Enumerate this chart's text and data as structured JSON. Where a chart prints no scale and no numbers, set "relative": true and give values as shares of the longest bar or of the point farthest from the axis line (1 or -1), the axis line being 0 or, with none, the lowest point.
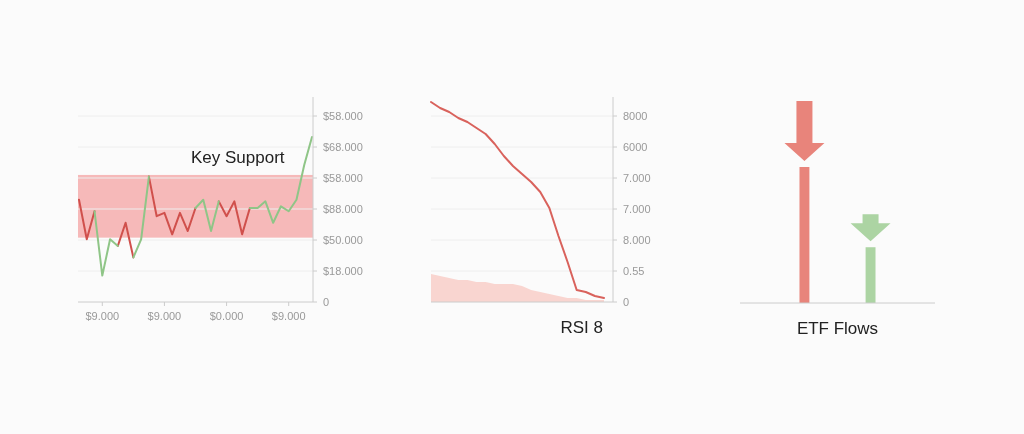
{
  "chart_data": [
    {
      "type": "line",
      "relative": true,
      "categories": [
        null,
        null,
        null,
        "$9.000",
        null,
        null,
        null,
        null,
        null,
        null,
        null,
        "$9.000",
        null,
        null,
        null,
        null,
        null,
        null,
        null,
        "$0.000",
        null,
        null,
        null,
        null,
        null,
        null,
        null,
        "$9.000",
        null,
        null,
        null
      ],
      "series": [
        {
          "color": "#d0504c",
          "values": [
            0.62,
            0.38,
            0.55,
            null,
            null,
            0.34,
            0.48,
            0.27,
            null,
            0.76,
            0.52,
            0.54,
            0.41,
            0.54,
            0.43,
            0.57,
            null,
            null,
            0.61,
            0.52,
            0.61,
            0.41,
            0.57,
            null,
            null,
            null,
            null,
            null,
            null,
            null,
            null
          ]
        },
        {
          "color": "#8fc587",
          "values": [
            null,
            null,
            0.55,
            0.16,
            0.38,
            0.34,
            null,
            0.27,
            0.38,
            0.76,
            null,
            null,
            null,
            null,
            null,
            0.57,
            0.62,
            0.43,
            0.61,
            null,
            null,
            null,
            0.57,
            0.57,
            0.61,
            0.48,
            0.58,
            0.55,
            0.62,
            0.83,
            1
          ]
        }
      ],
      "bands": [
        {
          "axis": "y",
          "from": 0.39,
          "to": 0.77,
          "label": "Key Support",
          "color": "#f4a3a3"
        }
      ],
      "annotations": [
        "0",
        "$18.000",
        "$50.000",
        "$88.000",
        "$58.000",
        "$68.000",
        "$58.000"
      ],
      "grid": "y"
    },
    {
      "type": "line",
      "relative": true,
      "categories": [
        null,
        null,
        null,
        null,
        null,
        null,
        null,
        null,
        null,
        null,
        null,
        null,
        null,
        null,
        null,
        null,
        null,
        null,
        null,
        null
      ],
      "series": [
        {
          "type": "area",
          "color": "#f9d5d0",
          "values": [
            0.14,
            0.13,
            0.12,
            0.11,
            0.11,
            0.1,
            0.1,
            0.09,
            0.09,
            0.09,
            0.08,
            0.06,
            0.05,
            0.04,
            0.03,
            0.02,
            0.02,
            0.01,
            0.01,
            0.01
          ]
        },
        {
          "color": "#d9625c",
          "values": [
            1,
            0.97,
            0.95,
            0.92,
            0.9,
            0.87,
            0.84,
            0.79,
            0.73,
            0.68,
            0.64,
            0.6,
            0.55,
            0.47,
            0.33,
            0.2,
            0.06,
            0.05,
            0.03,
            0.02
          ]
        }
      ],
      "annotations": [
        "0",
        "0.55",
        "8.000",
        "7.000",
        "7.000",
        "6000",
        "8000"
      ],
      "xlabel": "RSI 8",
      "grid": "y"
    },
    {
      "type": "bar",
      "categories": [
        null,
        null
      ],
      "values": [
        1,
        0.41
      ],
      "colors": [
        "#e8847b",
        "#acd4a3"
      ],
      "relative": true,
      "xlabel": "ETF Flows"
    }
  ]
}
